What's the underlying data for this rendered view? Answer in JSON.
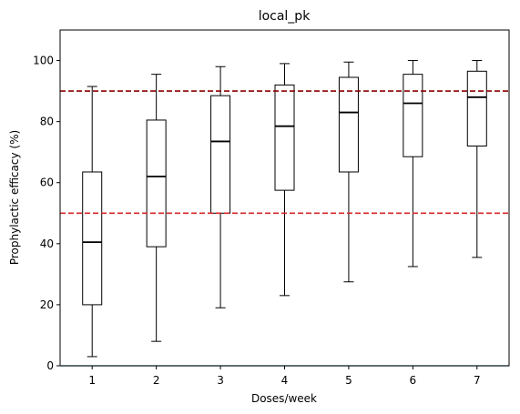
{
  "chart_data": {
    "type": "box",
    "title": "local_pk",
    "xlabel": "Doses/week",
    "ylabel": "Prophylactic efficacy (%)",
    "xlim": [
      0.5,
      7.5
    ],
    "ylim": [
      0,
      110
    ],
    "categories": [
      "1",
      "2",
      "3",
      "4",
      "5",
      "6",
      "7"
    ],
    "y_ticks": [
      "0",
      "20",
      "40",
      "60",
      "80",
      "100"
    ],
    "grid": false,
    "boxes": [
      {
        "category": "1",
        "whisker_low": 3,
        "q1": 20,
        "median": 40.5,
        "q3": 63.5,
        "whisker_high": 91.5
      },
      {
        "category": "2",
        "whisker_low": 8,
        "q1": 39,
        "median": 62,
        "q3": 80.5,
        "whisker_high": 95.5
      },
      {
        "category": "3",
        "whisker_low": 19,
        "q1": 50,
        "median": 73.5,
        "q3": 88.5,
        "whisker_high": 98
      },
      {
        "category": "4",
        "whisker_low": 23,
        "q1": 57.5,
        "median": 78.5,
        "q3": 92,
        "whisker_high": 99
      },
      {
        "category": "5",
        "whisker_low": 27.5,
        "q1": 63.5,
        "median": 83,
        "q3": 94.5,
        "whisker_high": 99.5
      },
      {
        "category": "6",
        "whisker_low": 32.5,
        "q1": 68.5,
        "median": 86,
        "q3": 95.5,
        "whisker_high": 100
      },
      {
        "category": "7",
        "whisker_low": 35.5,
        "q1": 72,
        "median": 88,
        "q3": 96.5,
        "whisker_high": 100
      }
    ],
    "reference_lines": [
      {
        "y": 90,
        "style": "dashed",
        "color": "#8b0000"
      },
      {
        "y": 50,
        "style": "dashed",
        "color": "#d62728"
      },
      {
        "y": 0,
        "style": "solid",
        "color": "#1f77b4"
      }
    ],
    "colors": {
      "box": "#000000",
      "median": "#000000"
    }
  }
}
